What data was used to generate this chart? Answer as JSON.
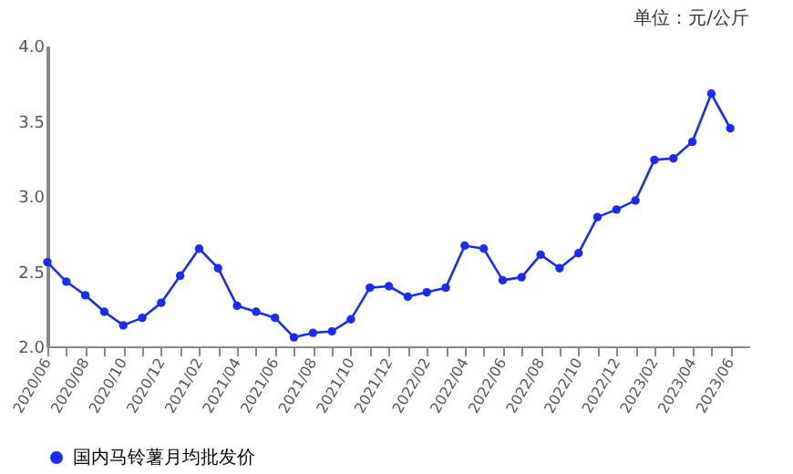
{
  "chart_data": {
    "type": "line",
    "annotations": [
      "单位：元/公斤"
    ],
    "categories": [
      "2020/06",
      null,
      "2020/08",
      null,
      "2020/10",
      null,
      "2020/12",
      null,
      "2021/02",
      null,
      "2021/04",
      null,
      "2021/06",
      null,
      "2021/08",
      null,
      "2021/10",
      null,
      "2021/12",
      null,
      "2022/02",
      null,
      "2022/04",
      null,
      "2022/06",
      null,
      "2022/08",
      null,
      "2022/10",
      null,
      "2022/12",
      null,
      "2023/02",
      null,
      "2023/04",
      null,
      "2023/06"
    ],
    "series": [
      {
        "name": "国内马铃薯月均批发价",
        "color": "#1a2cf0",
        "values": [
          2.56,
          2.43,
          2.34,
          2.23,
          2.14,
          2.19,
          2.29,
          2.47,
          2.65,
          2.52,
          2.27,
          2.23,
          2.19,
          2.06,
          2.09,
          2.1,
          2.18,
          2.39,
          2.4,
          2.33,
          2.36,
          2.39,
          2.67,
          2.65,
          2.44,
          2.46,
          2.61,
          2.52,
          2.62,
          2.86,
          2.91,
          2.97,
          3.24,
          3.25,
          3.36,
          3.68,
          3.45
        ]
      }
    ],
    "ylim": [
      2.0,
      4.0
    ],
    "yticks": [
      {
        "value": 2,
        "label": "2.0"
      },
      {
        "value": 2.5,
        "label": "2.5"
      },
      {
        "value": 3,
        "label": "3.0"
      },
      {
        "value": 3.5,
        "label": "3.5"
      },
      {
        "value": 4,
        "label": "4.0"
      }
    ],
    "grid": false,
    "legend": "bottom",
    "marker": "circle",
    "line_style": "solid"
  }
}
